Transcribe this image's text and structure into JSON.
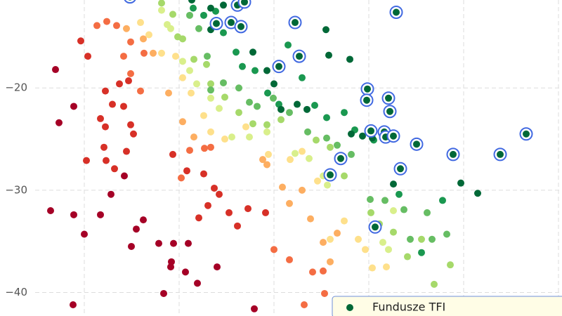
{
  "chart_data": {
    "type": "scatter",
    "xlim": [
      0,
      800
    ],
    "xticks": [
      120,
      255,
      390,
      525,
      660,
      795
    ],
    "ylim": [
      -42.3,
      -11.4
    ],
    "yticks": [
      {
        "value": -20,
        "label": "−20"
      },
      {
        "value": -30,
        "label": "−30"
      },
      {
        "value": -40,
        "label": "−40"
      }
    ],
    "grid": true,
    "legend": "lower right",
    "series": [
      {
        "color": "#a50026",
        "x": [
          72,
          79,
          105,
          84,
          105,
          120,
          143,
          158,
          177,
          187,
          194,
          204,
          226,
          243,
          247,
          233,
          244,
          264,
          268,
          281,
          309,
          104,
          362
        ],
        "values": [
          -32.0,
          -18.2,
          -21.8,
          -23.4,
          -32.4,
          -34.3,
          -32.4,
          -30.4,
          -28.6,
          -35.5,
          -33.8,
          -32.9,
          -35.2,
          -37.5,
          -35.2,
          -40.1,
          -37.0,
          -38.0,
          -35.2,
          -39.1,
          -37.5,
          -41.2,
          -41.6
        ]
      },
      {
        "color": "#d73027",
        "x": [
          143,
          150,
          160,
          148,
          151,
          163,
          176,
          183,
          190,
          186,
          150,
          170,
          123,
          115,
          125,
          180,
          246,
          266,
          283,
          296,
          312,
          326,
          338,
          353,
          378,
          290,
          305
        ],
        "values": [
          -23.0,
          -23.8,
          -21.6,
          -25.8,
          -27.1,
          -27.9,
          -21.8,
          -19.3,
          -24.5,
          -23.6,
          -20.3,
          -19.6,
          -27.1,
          -15.4,
          -16.9,
          -26.2,
          -26.5,
          -28.1,
          -32.7,
          -31.5,
          -30.4,
          -32.2,
          -33.5,
          -31.8,
          -32.2,
          -28.4,
          -29.8
        ]
      },
      {
        "color": "#f46d43",
        "x": [
          138,
          152,
          166,
          176,
          186,
          200,
          205,
          186,
          270,
          291,
          258,
          300,
          390,
          412,
          433,
          445,
          460,
          462
        ],
        "values": [
          -13.9,
          -13.5,
          -13.9,
          -16.9,
          -18.6,
          -20.3,
          -16.6,
          -15.5,
          -26.1,
          -25.9,
          -28.8,
          -25.8,
          -35.8,
          -36.8,
          -41.2,
          -38.0,
          -37.9,
          -40.1
        ]
      },
      {
        "color": "#fdae61",
        "x": [
          180,
          204,
          218,
          240,
          260,
          276,
          374,
          380,
          402,
          412,
          430,
          460,
          480,
          470,
          442
        ],
        "values": [
          -14.2,
          -15.2,
          -16.6,
          -20.5,
          -23.3,
          -24.8,
          -27.0,
          -27.5,
          -29.7,
          -31.3,
          -30.0,
          -35.1,
          -34.2,
          -37.0,
          -32.8
        ]
      },
      {
        "color": "#fee08b",
        "x": [
          200,
          212,
          230,
          250,
          260,
          272,
          290,
          300,
          320,
          350,
          382,
          413,
          430,
          452,
          470,
          490,
          510,
          530,
          520,
          550
        ],
        "values": [
          -13.6,
          -14.8,
          -16.6,
          -16.9,
          -19.0,
          -20.5,
          -22.7,
          -24.3,
          -25.0,
          -23.8,
          -26.5,
          -27.0,
          -26.2,
          -29.1,
          -34.8,
          -33.0,
          -34.8,
          -37.6,
          -35.8,
          -37.5
        ]
      },
      {
        "color": "#d9ef8b",
        "x": [
          230,
          238,
          243,
          260,
          270,
          280,
          300,
          312,
          330,
          355,
          380,
          420,
          440,
          460,
          466,
          545,
          553,
          560
        ],
        "values": [
          -12.4,
          -13.8,
          -14.2,
          -17.4,
          -18.3,
          -19.6,
          -21.0,
          -22.0,
          -24.8,
          -24.8,
          -24.3,
          -26.4,
          -26.9,
          -28.6,
          -29.5,
          -35.1,
          -35.8,
          -32.0
        ]
      },
      {
        "color": "#a6d96a",
        "x": [
          230,
          246,
          253,
          260,
          276,
          294,
          300,
          320,
          340,
          360,
          380,
          400,
          450,
          470,
          490,
          528,
          540,
          560,
          580,
          600,
          618,
          641
        ],
        "values": [
          -11.7,
          -12.8,
          -15.0,
          -15.2,
          -17.2,
          -17.7,
          -19.6,
          -20.9,
          -22.4,
          -23.5,
          -23.6,
          -23.1,
          -25.1,
          -25.8,
          -28.6,
          -32.2,
          -33.3,
          -34.1,
          -36.5,
          -34.8,
          -39.2,
          -37.3
        ]
      },
      {
        "color": "#66bd63",
        "x": [
          270,
          283,
          295,
          300,
          318,
          340,
          355,
          366,
          389,
          412,
          438,
          465,
          480,
          500,
          527,
          548,
          575,
          584,
          608,
          636,
          615
        ],
        "values": [
          -12.9,
          -14.2,
          -16.9,
          -20.2,
          -19.5,
          -20.0,
          -21.4,
          -21.8,
          -21.0,
          -22.4,
          -24.3,
          -24.9,
          -25.6,
          -26.5,
          -30.9,
          -31.0,
          -31.9,
          -34.8,
          -32.2,
          -34.3,
          -34.8
        ]
      },
      {
        "color": "#1a9850",
        "x": [
          275,
          290,
          307,
          318,
          336,
          345,
          363,
          381,
          397,
          410,
          430,
          448,
          465,
          490,
          505,
          532,
          568,
          600,
          630
        ],
        "values": [
          -12.2,
          -12.9,
          -12.5,
          -14.6,
          -16.5,
          -17.9,
          -18.3,
          -20.5,
          -21.6,
          -15.8,
          -19.0,
          -21.7,
          -22.9,
          -22.4,
          -24.1,
          -25.1,
          -30.4,
          -36.1,
          -31.0
        ]
      },
      {
        "name": "Fundusze TFI",
        "color": "#006837",
        "x": [
          273,
          300,
          318,
          360,
          380,
          390,
          400,
          423,
          437,
          464,
          498,
          468,
          500,
          516,
          530,
          560,
          656,
          680,
          300,
          310
        ],
        "values": [
          -11.4,
          -12.2,
          -11.9,
          -16.5,
          -18.3,
          -19.6,
          -22.1,
          -21.6,
          -22.1,
          -14.3,
          -17.2,
          -16.8,
          -24.5,
          -24.7,
          -24.9,
          -29.4,
          -29.3,
          -30.3,
          -14.3,
          -13.6
        ]
      },
      {
        "color": "#006837",
        "edgecolor": "#4169e1",
        "x": [
          185,
          308,
          329,
          338,
          348,
          343,
          420,
          426,
          397,
          564,
          523,
          522,
          553,
          555,
          528,
          547,
          549,
          560,
          593,
          645,
          712,
          749,
          485,
          470,
          570,
          534
        ],
        "values": [
          -11.1,
          -13.7,
          -13.6,
          -11.9,
          -11.6,
          -14.0,
          -13.6,
          -16.9,
          -17.9,
          -12.6,
          -20.1,
          -21.2,
          -21.0,
          -22.3,
          -24.2,
          -24.3,
          -24.8,
          -24.7,
          -25.5,
          -26.5,
          -26.5,
          -24.5,
          -26.9,
          -28.5,
          -27.9,
          -33.6
        ]
      }
    ]
  }
}
